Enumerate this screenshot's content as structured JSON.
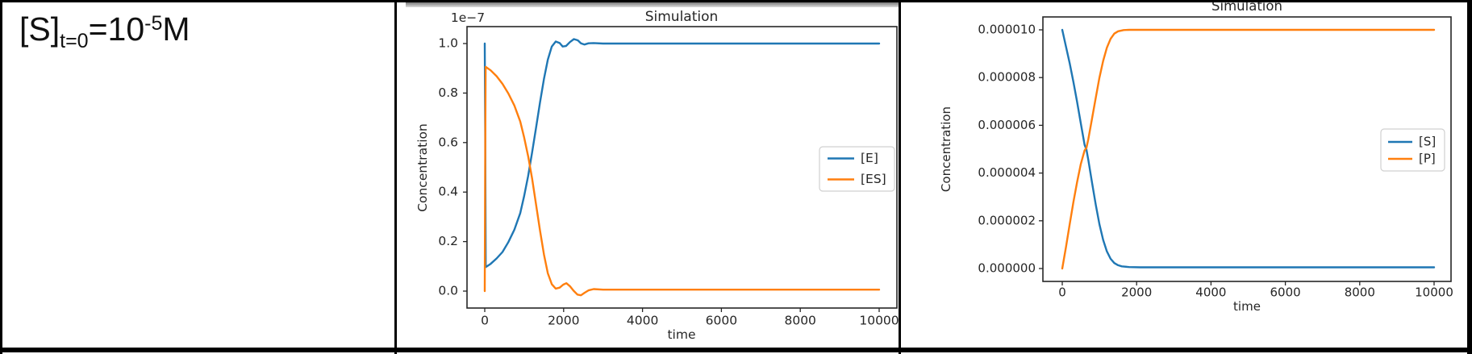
{
  "table": {
    "border_color": "#000000",
    "background": "#ffffff"
  },
  "left_cell": {
    "formula": {
      "species": "[S]",
      "subscript": "t=0",
      "equals_base": "=10",
      "exponent": "-5",
      "unit": "M"
    }
  },
  "colors": {
    "blue": "#1f77b4",
    "orange": "#ff7f0e",
    "axis": "#262626",
    "legend_border": "#d0d0d0"
  },
  "chart_data": [
    {
      "type": "line",
      "title": "Simulation",
      "xlabel": "time",
      "ylabel": "Concentration",
      "y_offset_label": "1e−7",
      "grid": false,
      "legend_position": "center right",
      "xlim": [
        -450,
        10450
      ],
      "ylim": [
        -0.068,
        1.068
      ],
      "x_ticks": [
        {
          "value": 0,
          "label": "0"
        },
        {
          "value": 2000,
          "label": "2000"
        },
        {
          "value": 4000,
          "label": "4000"
        },
        {
          "value": 6000,
          "label": "6000"
        },
        {
          "value": 8000,
          "label": "8000"
        },
        {
          "value": 10000,
          "label": "10000"
        }
      ],
      "y_ticks": [
        {
          "value": 0.0,
          "label": "0.0"
        },
        {
          "value": 0.2,
          "label": "0.2"
        },
        {
          "value": 0.4,
          "label": "0.4"
        },
        {
          "value": 0.6,
          "label": "0.6"
        },
        {
          "value": 0.8,
          "label": "0.8"
        },
        {
          "value": 1.0,
          "label": "1.0"
        }
      ],
      "series": [
        {
          "name": "[E]",
          "color": "#1f77b4",
          "points": [
            [
              0,
              1.0
            ],
            [
              12,
              0.62
            ],
            [
              25,
              0.097
            ],
            [
              150,
              0.11
            ],
            [
              300,
              0.132
            ],
            [
              450,
              0.158
            ],
            [
              600,
              0.198
            ],
            [
              750,
              0.248
            ],
            [
              900,
              0.315
            ],
            [
              1000,
              0.385
            ],
            [
              1100,
              0.465
            ],
            [
              1200,
              0.56
            ],
            [
              1300,
              0.66
            ],
            [
              1400,
              0.762
            ],
            [
              1500,
              0.857
            ],
            [
              1600,
              0.935
            ],
            [
              1700,
              0.988
            ],
            [
              1800,
              1.008
            ],
            [
              1900,
              1.002
            ],
            [
              1975,
              0.988
            ],
            [
              2060,
              0.99
            ],
            [
              2160,
              1.006
            ],
            [
              2260,
              1.018
            ],
            [
              2360,
              1.013
            ],
            [
              2440,
              1.001
            ],
            [
              2530,
              0.996
            ],
            [
              2630,
              1.001
            ],
            [
              2760,
              1.002
            ],
            [
              3000,
              1.0
            ],
            [
              10000,
              1.0
            ]
          ]
        },
        {
          "name": "[ES]",
          "color": "#ff7f0e",
          "points": [
            [
              0,
              0.0
            ],
            [
              10,
              0.5
            ],
            [
              22,
              0.906
            ],
            [
              150,
              0.892
            ],
            [
              300,
              0.868
            ],
            [
              450,
              0.837
            ],
            [
              600,
              0.798
            ],
            [
              750,
              0.75
            ],
            [
              900,
              0.685
            ],
            [
              1000,
              0.62
            ],
            [
              1100,
              0.545
            ],
            [
              1200,
              0.455
            ],
            [
              1300,
              0.35
            ],
            [
              1400,
              0.245
            ],
            [
              1500,
              0.148
            ],
            [
              1600,
              0.072
            ],
            [
              1700,
              0.028
            ],
            [
              1800,
              0.01
            ],
            [
              1900,
              0.014
            ],
            [
              1990,
              0.026
            ],
            [
              2070,
              0.032
            ],
            [
              2160,
              0.02
            ],
            [
              2250,
              0.002
            ],
            [
              2350,
              -0.014
            ],
            [
              2440,
              -0.017
            ],
            [
              2530,
              -0.007
            ],
            [
              2630,
              0.003
            ],
            [
              2760,
              0.008
            ],
            [
              3000,
              0.006
            ],
            [
              10000,
              0.006
            ]
          ]
        }
      ]
    },
    {
      "type": "line",
      "title": "Simulation",
      "xlabel": "time",
      "ylabel": "Concentration",
      "y_offset_label": "",
      "grid": false,
      "legend_position": "center right",
      "xlim": [
        -520,
        10450
      ],
      "ylim": [
        -5.4e-07,
        1.054e-05
      ],
      "x_ticks": [
        {
          "value": 0,
          "label": "0"
        },
        {
          "value": 2000,
          "label": "2000"
        },
        {
          "value": 4000,
          "label": "4000"
        },
        {
          "value": 6000,
          "label": "6000"
        },
        {
          "value": 8000,
          "label": "8000"
        },
        {
          "value": 10000,
          "label": "10000"
        }
      ],
      "y_ticks": [
        {
          "value": 0,
          "label": "0.000000"
        },
        {
          "value": 2e-06,
          "label": "0.000002"
        },
        {
          "value": 4e-06,
          "label": "0.000004"
        },
        {
          "value": 6e-06,
          "label": "0.000006"
        },
        {
          "value": 8e-06,
          "label": "0.000008"
        },
        {
          "value": 1e-05,
          "label": "0.000010"
        }
      ],
      "series": [
        {
          "name": "[S]",
          "color": "#1f77b4",
          "points": [
            [
              0,
              1e-05
            ],
            [
              100,
              9.3e-06
            ],
            [
              200,
              8.6e-06
            ],
            [
              300,
              7.82e-06
            ],
            [
              400,
              6.98e-06
            ],
            [
              500,
              6.08e-06
            ],
            [
              600,
              5.18e-06
            ],
            [
              650,
              4.98e-06
            ],
            [
              700,
              4.55e-06
            ],
            [
              800,
              3.6e-06
            ],
            [
              900,
              2.68e-06
            ],
            [
              1000,
              1.85e-06
            ],
            [
              1100,
              1.2e-06
            ],
            [
              1200,
              7.2e-07
            ],
            [
              1300,
              4.1e-07
            ],
            [
              1400,
              2.3e-07
            ],
            [
              1500,
              1.4e-07
            ],
            [
              1600,
              9e-08
            ],
            [
              1800,
              6e-08
            ],
            [
              2100,
              5e-08
            ],
            [
              10000,
              5e-08
            ]
          ]
        },
        {
          "name": "[P]",
          "color": "#ff7f0e",
          "points": [
            [
              0,
              0.0
            ],
            [
              100,
              9e-07
            ],
            [
              200,
              1.85e-06
            ],
            [
              300,
              2.78e-06
            ],
            [
              400,
              3.62e-06
            ],
            [
              500,
              4.38e-06
            ],
            [
              600,
              4.95e-06
            ],
            [
              650,
              5.06e-06
            ],
            [
              700,
              5.42e-06
            ],
            [
              800,
              6.28e-06
            ],
            [
              900,
              7.15e-06
            ],
            [
              1000,
              8e-06
            ],
            [
              1100,
              8.7e-06
            ],
            [
              1200,
              9.25e-06
            ],
            [
              1300,
              9.62e-06
            ],
            [
              1400,
              9.84e-06
            ],
            [
              1500,
              9.94e-06
            ],
            [
              1650,
              9.99e-06
            ],
            [
              1800,
              1e-05
            ],
            [
              10000,
              1e-05
            ]
          ]
        }
      ]
    }
  ]
}
